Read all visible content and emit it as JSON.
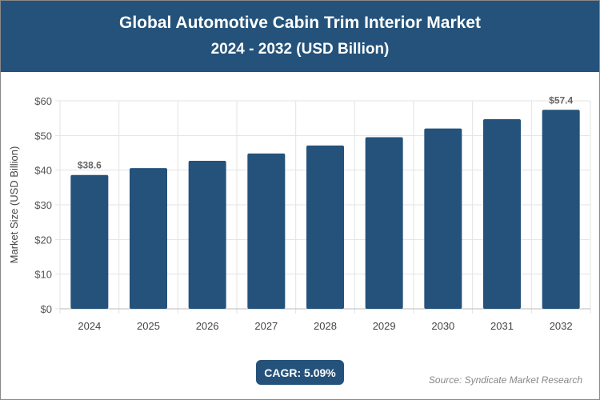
{
  "header": {
    "title": "Global Automotive Cabin Trim Interior Market",
    "subtitle": "2024 - 2032 (USD Billion)"
  },
  "footer": {
    "cagr": "CAGR: 5.09%",
    "source": "Source: Syndicate Market Research"
  },
  "chart_data": {
    "type": "bar",
    "title": "Global Automotive Cabin Trim Interior Market",
    "subtitle": "2024 - 2032 (USD Billion)",
    "xlabel": "",
    "ylabel": "Market Size (USD Billion)",
    "categories": [
      "2024",
      "2025",
      "2026",
      "2027",
      "2028",
      "2029",
      "2030",
      "2031",
      "2032"
    ],
    "values": [
      38.6,
      40.6,
      42.7,
      44.8,
      47.1,
      49.5,
      52.0,
      54.7,
      57.4
    ],
    "data_labels": {
      "0": "$38.6",
      "8": "$57.4"
    },
    "ylim": [
      0,
      60
    ],
    "yticks": [
      "$0",
      "$10",
      "$20",
      "$30",
      "$40",
      "$50",
      "$60"
    ],
    "grid": true,
    "bar_color": "#24527a"
  }
}
